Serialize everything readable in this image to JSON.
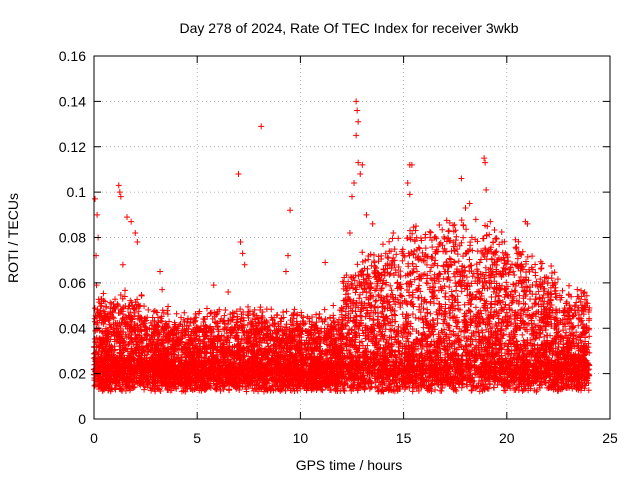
{
  "chart_data": {
    "type": "scatter",
    "title": "Day 278 of 2024, Rate Of TEC Index for receiver 3wkb",
    "xlabel": "GPS time / hours",
    "ylabel": "ROTI / TECUs",
    "xlim": [
      0,
      25
    ],
    "ylim": [
      0,
      0.16
    ],
    "x_ticks": [
      0,
      5,
      10,
      15,
      20,
      25
    ],
    "y_ticks": [
      0,
      0.02,
      0.04,
      0.06,
      0.08,
      0.1,
      0.12,
      0.14,
      0.16
    ],
    "x_tick_labels": [
      "0",
      "5",
      "10",
      "15",
      "20",
      "25"
    ],
    "y_tick_labels": [
      "0",
      "0.02",
      "0.04",
      "0.06",
      "0.08",
      "0.1",
      "0.12",
      "0.14",
      "0.16"
    ],
    "grid": true,
    "marker": "+",
    "color": "#ff0000",
    "data_range_hours": [
      0,
      24
    ],
    "series": [
      {
        "name": "ROTI",
        "points": [
          [
            0.05,
            0.097
          ],
          [
            0.1,
            0.072
          ],
          [
            0.12,
            0.059
          ],
          [
            0.15,
            0.09
          ],
          [
            0.2,
            0.08
          ],
          [
            1.2,
            0.103
          ],
          [
            1.25,
            0.1
          ],
          [
            1.3,
            0.098
          ],
          [
            1.4,
            0.068
          ],
          [
            1.6,
            0.089
          ],
          [
            1.8,
            0.087
          ],
          [
            2.0,
            0.082
          ],
          [
            2.1,
            0.078
          ],
          [
            3.2,
            0.065
          ],
          [
            3.3,
            0.057
          ],
          [
            5.8,
            0.059
          ],
          [
            6.5,
            0.056
          ],
          [
            7.0,
            0.108
          ],
          [
            7.1,
            0.078
          ],
          [
            7.2,
            0.073
          ],
          [
            7.3,
            0.068
          ],
          [
            8.1,
            0.129
          ],
          [
            9.5,
            0.092
          ],
          [
            9.4,
            0.072
          ],
          [
            9.3,
            0.065
          ],
          [
            11.2,
            0.069
          ],
          [
            12.7,
            0.14
          ],
          [
            12.75,
            0.136
          ],
          [
            12.8,
            0.131
          ],
          [
            12.7,
            0.125
          ],
          [
            12.8,
            0.113
          ],
          [
            12.9,
            0.108
          ],
          [
            13.0,
            0.112
          ],
          [
            12.6,
            0.104
          ],
          [
            12.5,
            0.098
          ],
          [
            12.4,
            0.082
          ],
          [
            13.2,
            0.09
          ],
          [
            13.5,
            0.086
          ],
          [
            14.0,
            0.077
          ],
          [
            14.5,
            0.082
          ],
          [
            15.3,
            0.112
          ],
          [
            15.4,
            0.112
          ],
          [
            15.2,
            0.104
          ],
          [
            15.3,
            0.099
          ],
          [
            15.6,
            0.085
          ],
          [
            16.5,
            0.08
          ],
          [
            17.2,
            0.083
          ],
          [
            17.8,
            0.106
          ],
          [
            18.0,
            0.093
          ],
          [
            18.2,
            0.095
          ],
          [
            18.5,
            0.088
          ],
          [
            18.9,
            0.115
          ],
          [
            18.95,
            0.113
          ],
          [
            19.0,
            0.101
          ],
          [
            19.2,
            0.087
          ],
          [
            20.9,
            0.087
          ],
          [
            21.0,
            0.086
          ],
          [
            20.5,
            0.073
          ],
          [
            22.0,
            0.062
          ],
          [
            23.0,
            0.055
          ],
          [
            23.5,
            0.053
          ],
          [
            24.0,
            0.049
          ]
        ]
      }
    ]
  }
}
